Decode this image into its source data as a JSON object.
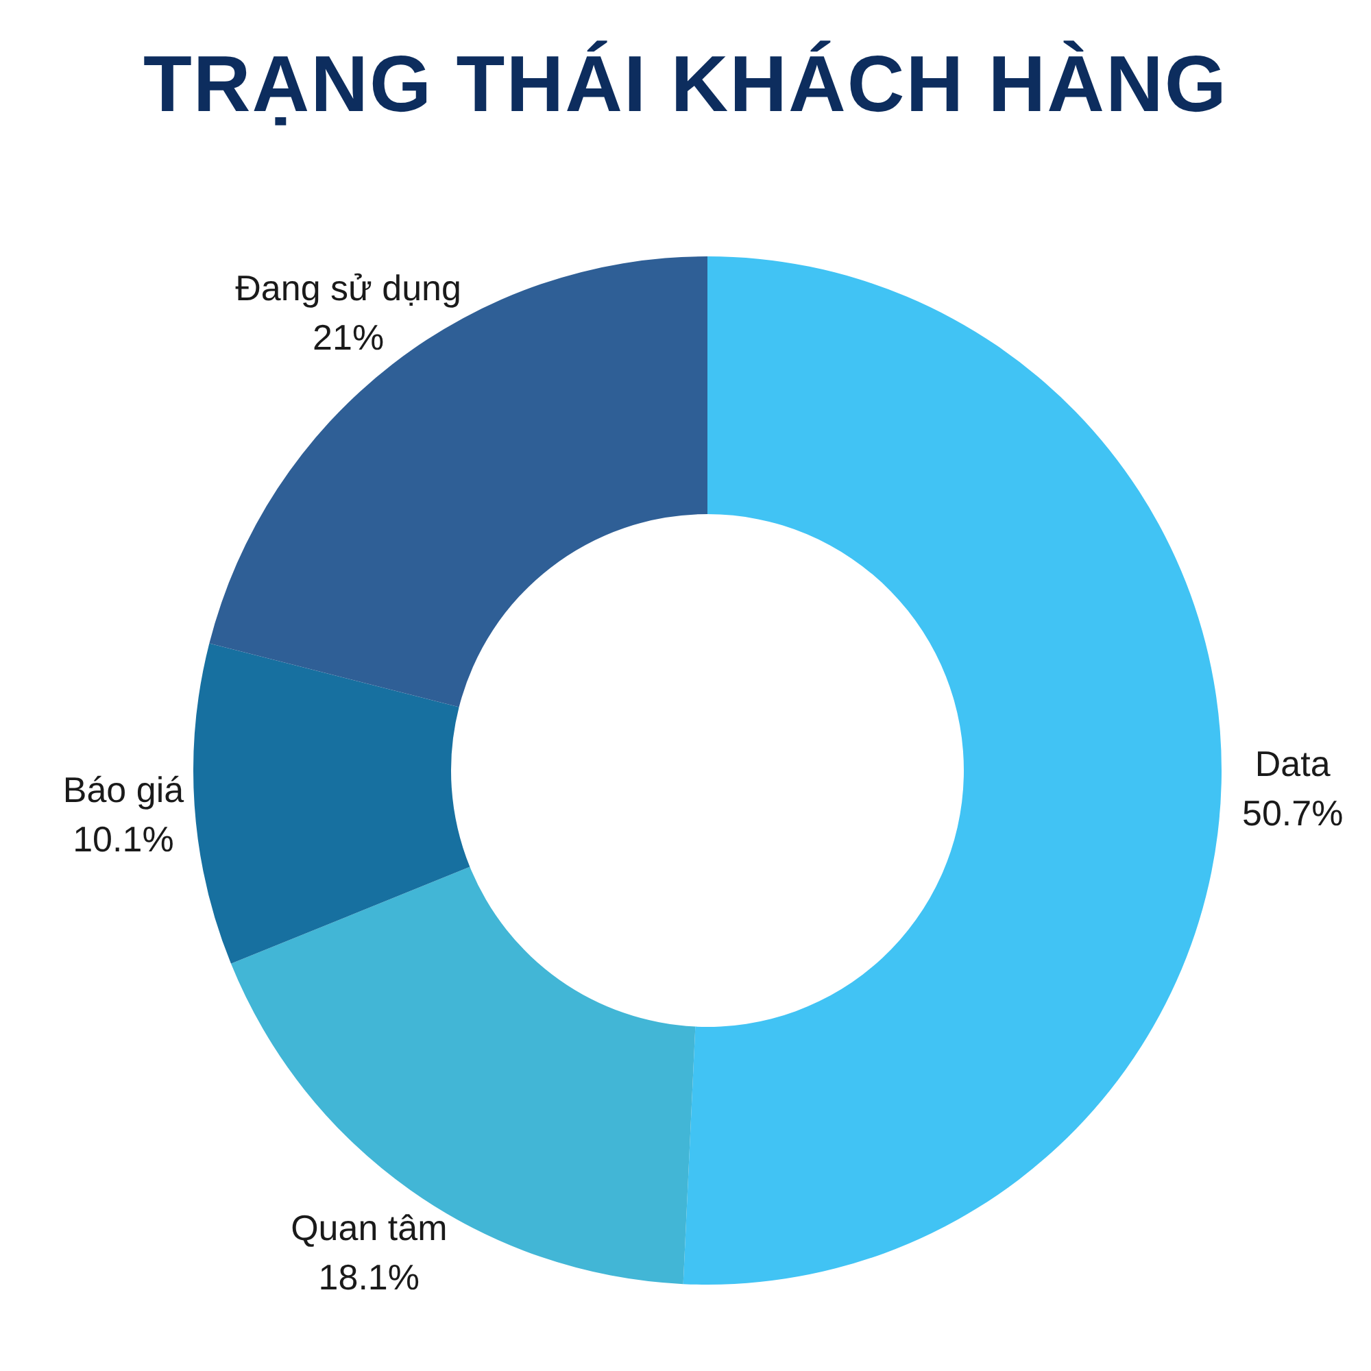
{
  "chart_data": {
    "type": "donut",
    "title": "TRẠNG THÁI KHÁCH HÀNG",
    "categories": [
      "Data",
      "Quan tâm",
      "Báo giá",
      "Đang sử dụng"
    ],
    "values": [
      50.7,
      18.1,
      10.1,
      21
    ],
    "value_labels": [
      "50.7%",
      "18.1%",
      "10.1%",
      "21%"
    ],
    "colors": [
      "#41c3f4",
      "#42b6d6",
      "#1770a0",
      "#2f5f96"
    ],
    "legend": false
  }
}
